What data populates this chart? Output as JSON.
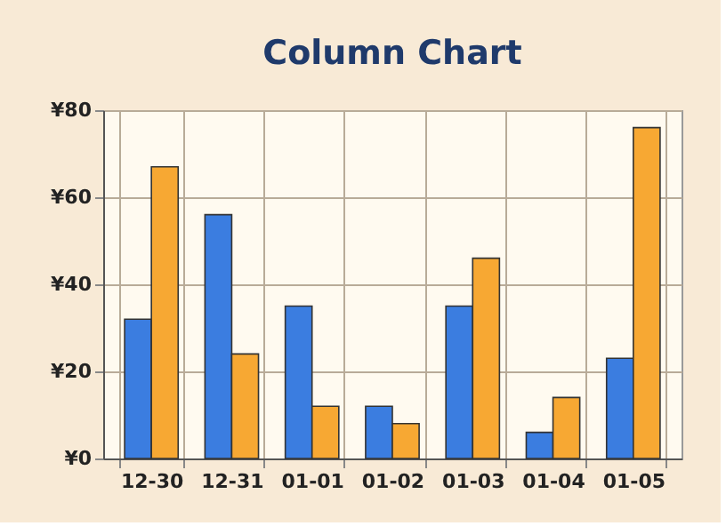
{
  "chart_data": {
    "type": "bar",
    "title": "Column Chart",
    "categories": [
      "12-30",
      "12-31",
      "01-01",
      "01-02",
      "01-03",
      "01-04",
      "01-05"
    ],
    "series": [
      {
        "color": "#3b7de0",
        "values": [
          32,
          56,
          35,
          12,
          35,
          6,
          23
        ]
      },
      {
        "color": "#f7a833",
        "values": [
          67,
          24,
          12,
          8,
          46,
          14,
          76
        ]
      }
    ],
    "ylim": [
      0,
      80
    ],
    "yticks": [
      {
        "value": 0,
        "label": "¥0"
      },
      {
        "value": 20,
        "label": "¥20"
      },
      {
        "value": 40,
        "label": "¥40"
      },
      {
        "value": 60,
        "label": "¥60"
      },
      {
        "value": 80,
        "label": "¥80"
      }
    ],
    "grid": true
  }
}
